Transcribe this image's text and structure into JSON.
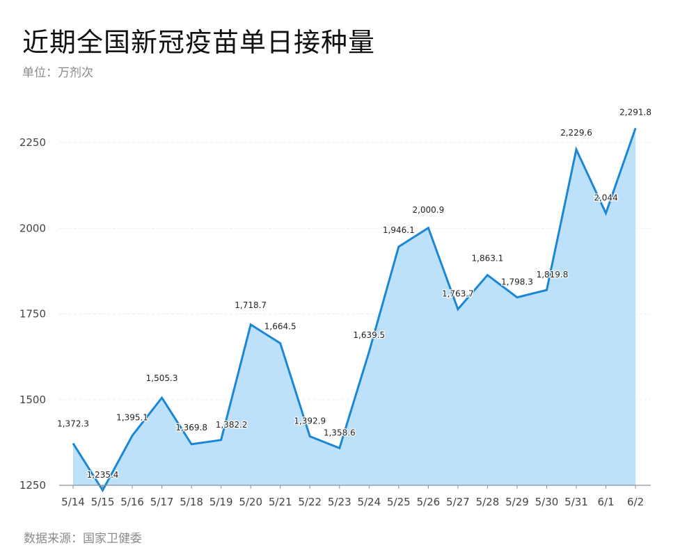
{
  "header": {
    "title": "近期全国新冠疫苗单日接种量",
    "subtitle": "单位：万剂次"
  },
  "footer": {
    "source": "数据来源：国家卫健委"
  },
  "colors": {
    "line": "#1a86d6",
    "area": "#bde0fb",
    "axis": "#8a9099",
    "grid": "#eeeeee"
  },
  "chart_data": {
    "type": "area",
    "title": "近期全国新冠疫苗单日接种量",
    "subtitle": "单位：万剂次",
    "xlabel": "",
    "ylabel": "万剂次",
    "categories": [
      "5/14",
      "5/15",
      "5/16",
      "5/17",
      "5/18",
      "5/19",
      "5/20",
      "5/21",
      "5/22",
      "5/23",
      "5/24",
      "5/25",
      "5/26",
      "5/27",
      "5/28",
      "5/29",
      "5/30",
      "5/31",
      "6/1",
      "6/2"
    ],
    "values": [
      1372.3,
      1235.4,
      1395.1,
      1505.3,
      1369.8,
      1382.2,
      1718.7,
      1664.5,
      1392.9,
      1358.6,
      1639.5,
      1946.1,
      2000.9,
      1763.7,
      1863.1,
      1798.3,
      1819.8,
      2229.6,
      2044,
      2291.8
    ],
    "value_labels": [
      "1,372.3",
      "1,235.4",
      "1,395.1",
      "1,505.3",
      "1,369.8",
      "1,382.2",
      "1,718.7",
      "1,664.5",
      "1,392.9",
      "1,358.6",
      "1,639.5",
      "1,946.1",
      "2,000.9",
      "1,763.7",
      "1,863.1",
      "1,798.3",
      "1,819.8",
      "2,229.6",
      "2,044",
      "2,291.8"
    ],
    "yticks": [
      1250,
      1500,
      1750,
      2000,
      2250
    ],
    "ylim": [
      1250,
      2300
    ],
    "grid": true,
    "legend": null,
    "source": "数据来源：国家卫健委"
  }
}
